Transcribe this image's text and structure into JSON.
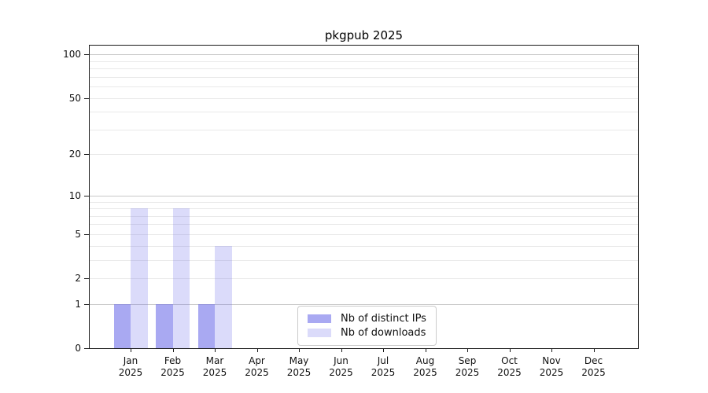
{
  "title": "pkgpub 2025",
  "chart_data": {
    "type": "bar",
    "title": "pkgpub 2025",
    "categories": [
      {
        "month": "Jan",
        "year": "2025"
      },
      {
        "month": "Feb",
        "year": "2025"
      },
      {
        "month": "Mar",
        "year": "2025"
      },
      {
        "month": "Apr",
        "year": "2025"
      },
      {
        "month": "May",
        "year": "2025"
      },
      {
        "month": "Jun",
        "year": "2025"
      },
      {
        "month": "Jul",
        "year": "2025"
      },
      {
        "month": "Aug",
        "year": "2025"
      },
      {
        "month": "Sep",
        "year": "2025"
      },
      {
        "month": "Oct",
        "year": "2025"
      },
      {
        "month": "Nov",
        "year": "2025"
      },
      {
        "month": "Dec",
        "year": "2025"
      }
    ],
    "series": [
      {
        "name": "Nb of distinct IPs",
        "values": [
          1,
          1,
          1,
          0,
          0,
          0,
          0,
          0,
          0,
          0,
          0,
          0
        ],
        "color": "rgba(90,90,230,0.52)"
      },
      {
        "name": "Nb of downloads",
        "values": [
          8,
          8,
          4,
          0,
          0,
          0,
          0,
          0,
          0,
          0,
          0,
          0
        ],
        "color": "rgba(90,90,230,0.22)"
      }
    ],
    "yscale": "log1p",
    "ylim": [
      0,
      115
    ],
    "y_ticks": [
      0,
      1,
      2,
      5,
      10,
      20,
      50,
      100
    ],
    "y_minor_ticks": [
      3,
      4,
      6,
      7,
      8,
      9,
      30,
      40,
      60,
      70,
      80,
      90
    ],
    "major_gridlines": [
      1,
      10,
      100
    ],
    "grid": "horizontal",
    "legend_position": "lower-center",
    "xlabel": "",
    "ylabel": ""
  },
  "legend": {
    "items": [
      {
        "label": "Nb of distinct IPs",
        "color": "rgba(90,90,230,0.52)"
      },
      {
        "label": "Nb of downloads",
        "color": "rgba(90,90,230,0.22)"
      }
    ]
  },
  "colors": {
    "spine": "#1a1a1a",
    "grid_minor": "#e9e9e9",
    "grid_major": "#c8c8c8",
    "background": "#ffffff"
  }
}
